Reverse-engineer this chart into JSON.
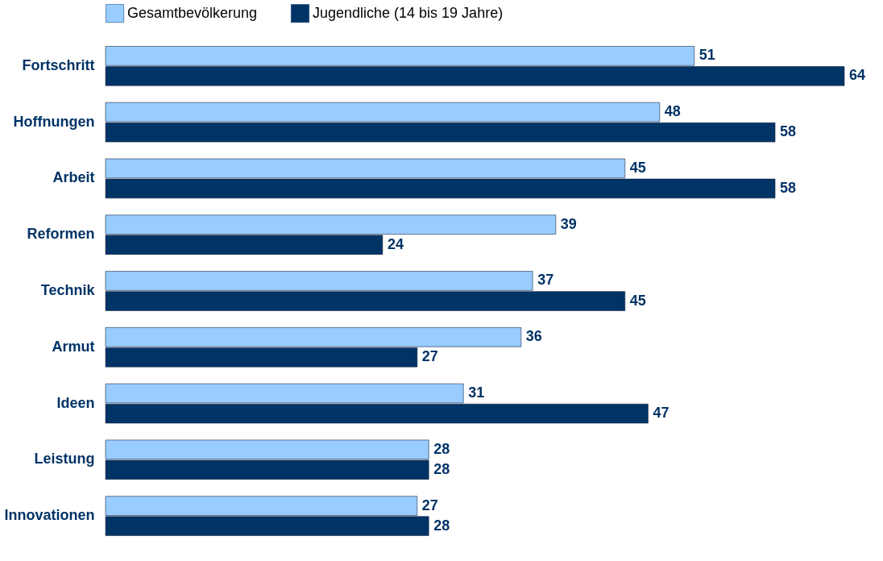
{
  "chart_data": {
    "type": "bar",
    "orientation": "horizontal",
    "categories": [
      "Fortschritt",
      "Hoffnungen",
      "Arbeit",
      "Reformen",
      "Technik",
      "Armut",
      "Ideen",
      "Leistung",
      "Innovationen"
    ],
    "series": [
      {
        "name": "Gesamtbevölkerung",
        "color": "#99ccff",
        "values": [
          51,
          48,
          45,
          39,
          37,
          36,
          31,
          28,
          27
        ]
      },
      {
        "name": "Jugendliche (14 bis 19 Jahre)",
        "color": "#003366",
        "values": [
          64,
          58,
          58,
          24,
          45,
          27,
          47,
          28,
          28
        ]
      }
    ],
    "data_labels": true,
    "legend": "top",
    "tick_labels": "y"
  }
}
